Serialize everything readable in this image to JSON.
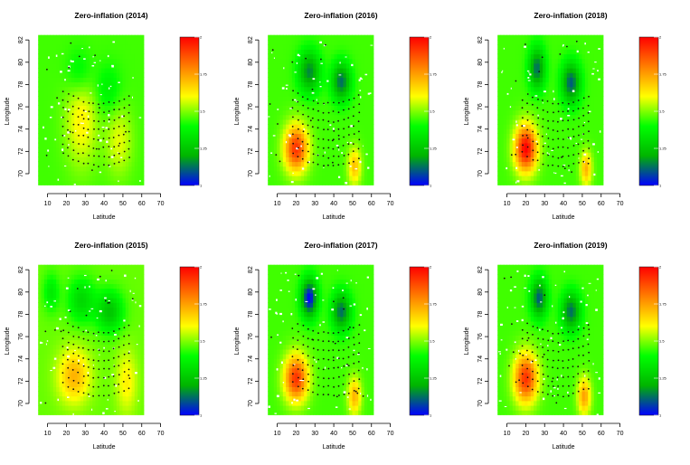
{
  "figure": {
    "cbar_ticks": [
      {
        "value": 1.0,
        "label": "1"
      },
      {
        "value": 1.25,
        "label": "1.25"
      },
      {
        "value": 1.5,
        "label": "1.5"
      },
      {
        "value": 1.75,
        "label": "1.75"
      },
      {
        "value": 2.0,
        "label": "2"
      }
    ],
    "colors": {
      "scale": [
        "#0000ff",
        "#00b400",
        "#00ff00",
        "#ffff00",
        "#ff7f00",
        "#ff0000"
      ],
      "surface_points": "#22e01e",
      "survey_points": "#111111",
      "axis": "#000000"
    }
  },
  "chart_data": [
    {
      "type": "heatmap",
      "title": "Zero-inflation (2014)",
      "xlabel": "Latitude",
      "ylabel": "Longitude",
      "xlim": [
        3,
        75
      ],
      "ylim": [
        68.7,
        82.5
      ],
      "xticks": [
        10,
        20,
        30,
        40,
        50,
        60,
        70
      ],
      "yticks": [
        70,
        72,
        74,
        76,
        78,
        80,
        82
      ],
      "color_range": [
        1,
        2
      ],
      "hotspots": [
        {
          "x": 28,
          "y": 75,
          "level": 1.62,
          "sx": 6,
          "sy": 3
        },
        {
          "x": 48,
          "y": 73,
          "level": 1.58,
          "sx": 5,
          "sy": 2.2
        },
        {
          "x": 27,
          "y": 79,
          "level": 1.34,
          "sx": 5,
          "sy": 1.6
        },
        {
          "x": 42,
          "y": 77.5,
          "level": 1.36,
          "sx": 5,
          "sy": 1.6
        }
      ],
      "background_level": 1.45
    },
    {
      "type": "heatmap",
      "title": "Zero-inflation (2016)",
      "xlabel": "Latitude",
      "ylabel": "Longitude",
      "xlim": [
        3,
        75
      ],
      "ylim": [
        68.7,
        82.5
      ],
      "xticks": [
        10,
        20,
        30,
        40,
        50,
        60,
        70
      ],
      "yticks": [
        70,
        72,
        74,
        76,
        78,
        80,
        82
      ],
      "color_range": [
        1,
        2
      ],
      "hotspots": [
        {
          "x": 20,
          "y": 72.3,
          "level": 1.92,
          "sx": 4.5,
          "sy": 1.5
        },
        {
          "x": 51,
          "y": 70.7,
          "level": 1.7,
          "sx": 2.5,
          "sy": 1.2
        },
        {
          "x": 27,
          "y": 79.2,
          "level": 1.15,
          "sx": 4,
          "sy": 1.3
        },
        {
          "x": 44,
          "y": 78.3,
          "level": 1.12,
          "sx": 3.5,
          "sy": 1.2
        }
      ],
      "background_level": 1.45
    },
    {
      "type": "heatmap",
      "title": "Zero-inflation (2018)",
      "xlabel": "Latitude",
      "ylabel": "Longitude",
      "xlim": [
        3,
        75
      ],
      "ylim": [
        68.7,
        82.5
      ],
      "xticks": [
        10,
        20,
        30,
        40,
        50,
        60,
        70
      ],
      "yticks": [
        70,
        72,
        74,
        76,
        78,
        80,
        82
      ],
      "color_range": [
        1,
        2
      ],
      "hotspots": [
        {
          "x": 20,
          "y": 72.3,
          "level": 2.0,
          "sx": 4.2,
          "sy": 1.5
        },
        {
          "x": 52,
          "y": 70.5,
          "level": 1.72,
          "sx": 2.2,
          "sy": 1.1
        },
        {
          "x": 26,
          "y": 79.5,
          "level": 1.12,
          "sx": 3,
          "sy": 1.3
        },
        {
          "x": 44,
          "y": 78.2,
          "level": 1.1,
          "sx": 3.5,
          "sy": 1.3
        }
      ],
      "background_level": 1.45
    },
    {
      "type": "heatmap",
      "title": "Zero-inflation (2015)",
      "xlabel": "Latitude",
      "ylabel": "Longitude",
      "xlim": [
        3,
        75
      ],
      "ylim": [
        68.7,
        82.5
      ],
      "xticks": [
        10,
        20,
        30,
        40,
        50,
        60,
        70
      ],
      "yticks": [
        70,
        72,
        74,
        76,
        78,
        80,
        82
      ],
      "color_range": [
        1,
        2
      ],
      "hotspots": [
        {
          "x": 24,
          "y": 72.5,
          "level": 1.72,
          "sx": 6,
          "sy": 1.7
        },
        {
          "x": 52,
          "y": 72,
          "level": 1.62,
          "sx": 4,
          "sy": 2
        },
        {
          "x": 28,
          "y": 79.3,
          "level": 1.3,
          "sx": 5,
          "sy": 1.4
        },
        {
          "x": 43,
          "y": 78.3,
          "level": 1.25,
          "sx": 5,
          "sy": 1.3
        },
        {
          "x": 12,
          "y": 80,
          "level": 1.35,
          "sx": 3,
          "sy": 1.2
        }
      ],
      "background_level": 1.48
    },
    {
      "type": "heatmap",
      "title": "Zero-inflation (2017)",
      "xlabel": "Latitude",
      "ylabel": "Longitude",
      "xlim": [
        3,
        75
      ],
      "ylim": [
        68.7,
        82.5
      ],
      "xticks": [
        10,
        20,
        30,
        40,
        50,
        60,
        70
      ],
      "yticks": [
        70,
        72,
        74,
        76,
        78,
        80,
        82
      ],
      "color_range": [
        1,
        2
      ],
      "hotspots": [
        {
          "x": 20,
          "y": 72.3,
          "level": 1.92,
          "sx": 4.5,
          "sy": 1.5
        },
        {
          "x": 51,
          "y": 70.7,
          "level": 1.72,
          "sx": 2.5,
          "sy": 1.2
        },
        {
          "x": 27,
          "y": 79.5,
          "level": 1.0,
          "sx": 3,
          "sy": 1.2
        },
        {
          "x": 44,
          "y": 78.3,
          "level": 1.12,
          "sx": 3.5,
          "sy": 1.2
        }
      ],
      "background_level": 1.45
    },
    {
      "type": "heatmap",
      "title": "Zero-inflation (2019)",
      "xlabel": "Latitude",
      "ylabel": "Longitude",
      "xlim": [
        3,
        75
      ],
      "ylim": [
        68.7,
        82.5
      ],
      "xticks": [
        10,
        20,
        30,
        40,
        50,
        60,
        70
      ],
      "yticks": [
        70,
        72,
        74,
        76,
        78,
        80,
        82
      ],
      "color_range": [
        1,
        2
      ],
      "hotspots": [
        {
          "x": 20,
          "y": 72.3,
          "level": 1.92,
          "sx": 4.5,
          "sy": 1.6
        },
        {
          "x": 51,
          "y": 70.7,
          "level": 1.75,
          "sx": 2.5,
          "sy": 1.2
        },
        {
          "x": 27,
          "y": 79.5,
          "level": 1.1,
          "sx": 3,
          "sy": 1.2
        },
        {
          "x": 44,
          "y": 78.3,
          "level": 1.12,
          "sx": 3.5,
          "sy": 1.2
        }
      ],
      "background_level": 1.45
    }
  ]
}
